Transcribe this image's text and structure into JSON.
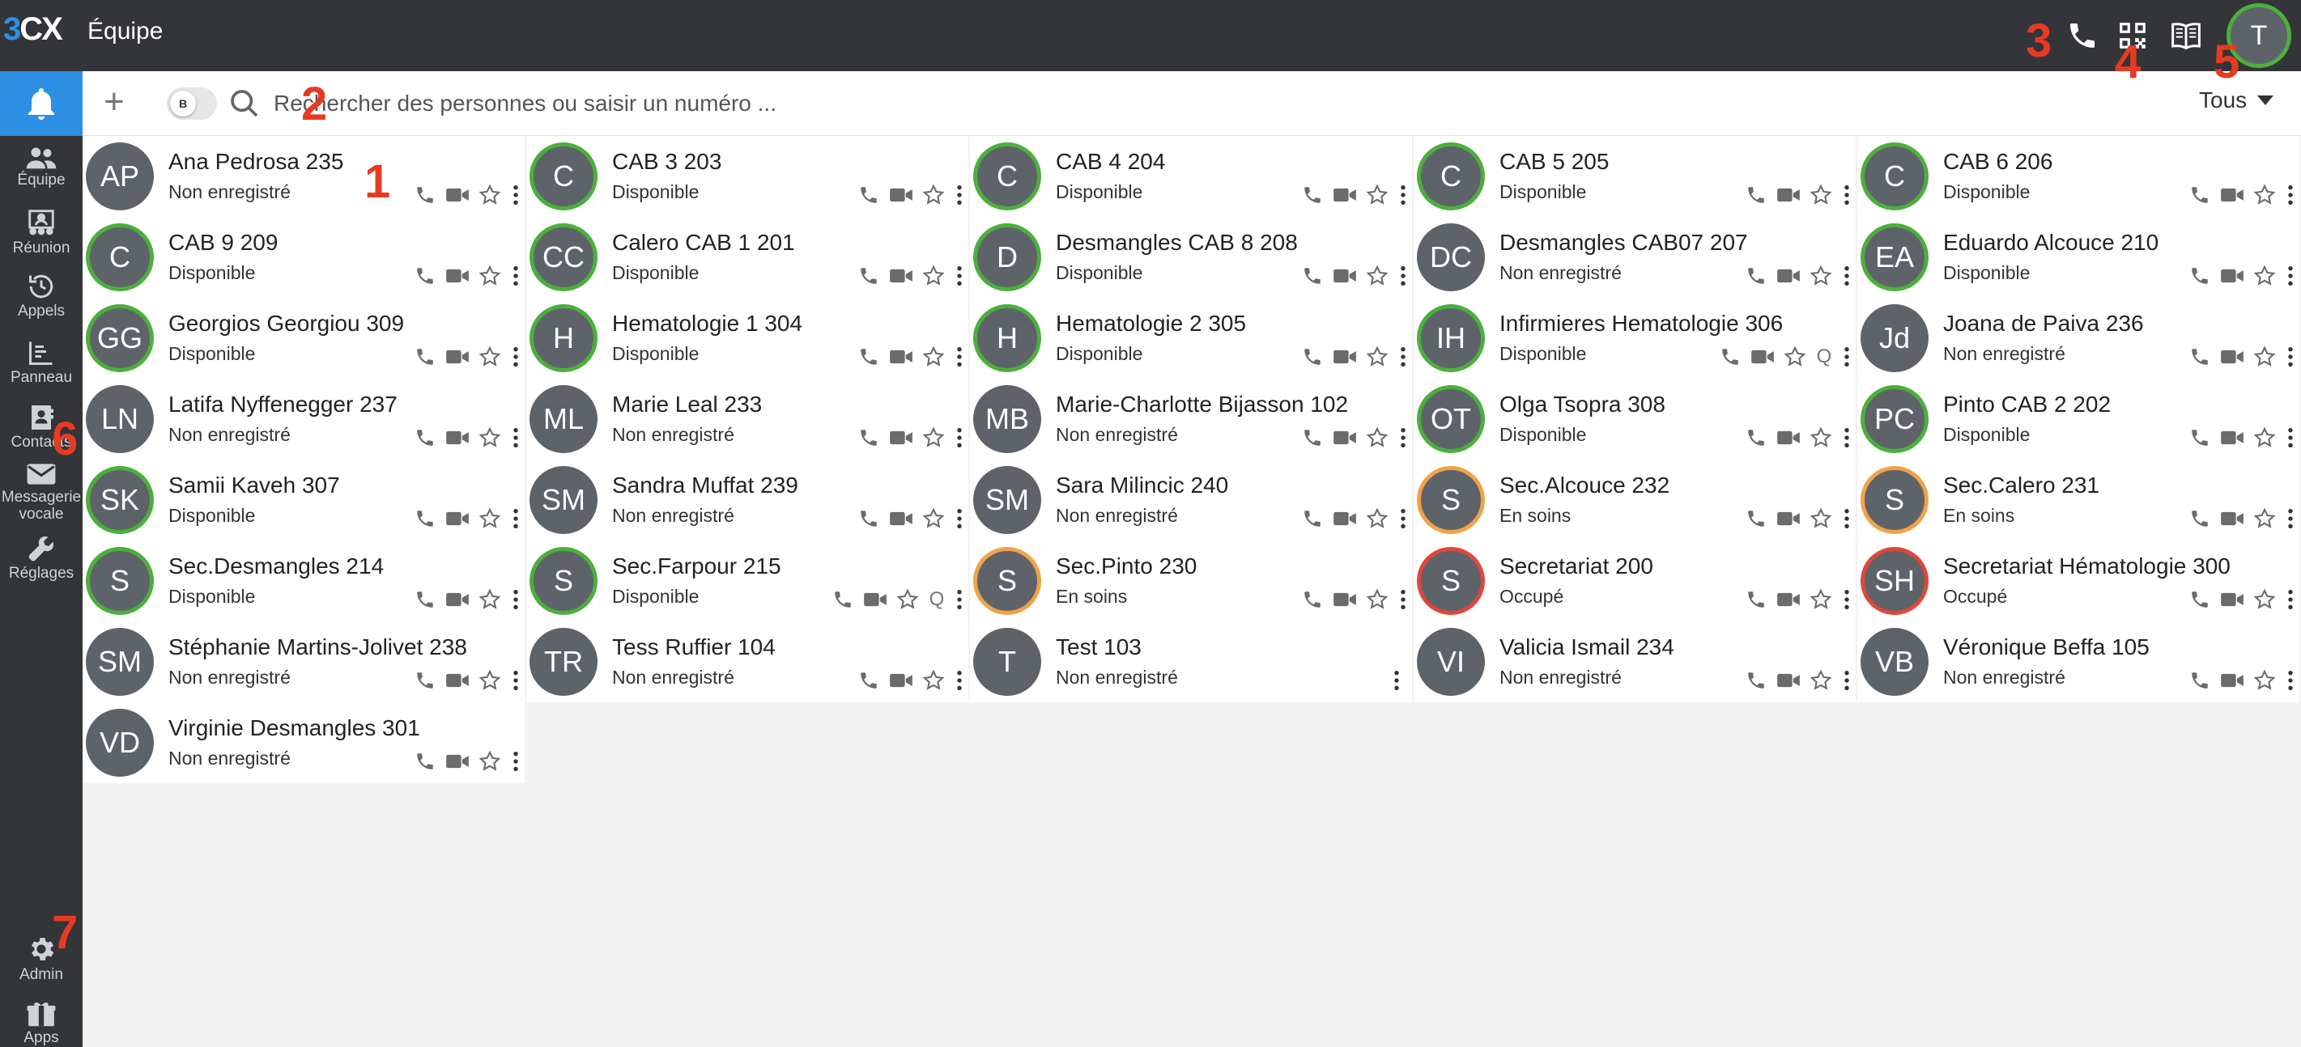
{
  "topbar": {
    "logo": "3CX",
    "title": "Équipe",
    "user_initial": "T"
  },
  "sidebar": {
    "items": [
      {
        "label": "Équipe",
        "icon": "team-icon"
      },
      {
        "label": "Réunion",
        "icon": "meeting-icon"
      },
      {
        "label": "Appels",
        "icon": "history-icon"
      },
      {
        "label": "Panneau",
        "icon": "panel-icon"
      },
      {
        "label": "Contacts",
        "icon": "contacts-icon"
      },
      {
        "label": "Messagerie vocale",
        "icon": "mail-icon"
      },
      {
        "label": "Réglages",
        "icon": "wrench-icon"
      },
      {
        "label": "Admin",
        "icon": "gear-icon"
      },
      {
        "label": "Apps",
        "icon": "apps-icon"
      }
    ]
  },
  "search": {
    "placeholder": "Rechercher des personnes ou saisir un numéro ...",
    "toggle_badge": "B",
    "filter": "Tous"
  },
  "annotations": [
    "1",
    "2",
    "3",
    "4",
    "5",
    "6",
    "7"
  ],
  "colors": {
    "accent": "#2c8fe3",
    "available": "#4caf3c",
    "busy": "#e0463b",
    "away": "#f0a347",
    "offline": "#5e636a"
  },
  "contacts": [
    {
      "initials": "AP",
      "name": "Ana Pedrosa 235",
      "status": "Non enregistré",
      "ring": "grey"
    },
    {
      "initials": "C",
      "name": "CAB 3 203",
      "status": "Disponible",
      "ring": "green"
    },
    {
      "initials": "C",
      "name": "CAB 4 204",
      "status": "Disponible",
      "ring": "green"
    },
    {
      "initials": "C",
      "name": "CAB 5 205",
      "status": "Disponible",
      "ring": "green"
    },
    {
      "initials": "C",
      "name": "CAB 6 206",
      "status": "Disponible",
      "ring": "green"
    },
    {
      "initials": "C",
      "name": "CAB 9 209",
      "status": "Disponible",
      "ring": "green"
    },
    {
      "initials": "CC",
      "name": "Calero CAB 1 201",
      "status": "Disponible",
      "ring": "green"
    },
    {
      "initials": "D",
      "name": "Desmangles CAB 8 208",
      "status": "Disponible",
      "ring": "green"
    },
    {
      "initials": "DC",
      "name": "Desmangles CAB07 207",
      "status": "Non enregistré",
      "ring": "grey"
    },
    {
      "initials": "EA",
      "name": "Eduardo Alcouce 210",
      "status": "Disponible",
      "ring": "green"
    },
    {
      "initials": "GG",
      "name": "Georgios Georgiou 309",
      "status": "Disponible",
      "ring": "green"
    },
    {
      "initials": "H",
      "name": "Hematologie 1 304",
      "status": "Disponible",
      "ring": "green"
    },
    {
      "initials": "H",
      "name": "Hematologie 2 305",
      "status": "Disponible",
      "ring": "green"
    },
    {
      "initials": "IH",
      "name": "Infirmieres Hematologie 306",
      "status": "Disponible",
      "ring": "green",
      "queue": "Q"
    },
    {
      "initials": "Jd",
      "name": "Joana de Paiva 236",
      "status": "Non enregistré",
      "ring": "grey"
    },
    {
      "initials": "LN",
      "name": "Latifa Nyffenegger 237",
      "status": "Non enregistré",
      "ring": "grey"
    },
    {
      "initials": "ML",
      "name": "Marie Leal 233",
      "status": "Non enregistré",
      "ring": "grey"
    },
    {
      "initials": "MB",
      "name": "Marie-Charlotte Bijasson 102",
      "status": "Non enregistré",
      "ring": "grey"
    },
    {
      "initials": "OT",
      "name": "Olga Tsopra 308",
      "status": "Disponible",
      "ring": "green"
    },
    {
      "initials": "PC",
      "name": "Pinto CAB 2 202",
      "status": "Disponible",
      "ring": "green"
    },
    {
      "initials": "SK",
      "name": "Samii Kaveh 307",
      "status": "Disponible",
      "ring": "green"
    },
    {
      "initials": "SM",
      "name": "Sandra Muffat 239",
      "status": "Non enregistré",
      "ring": "grey"
    },
    {
      "initials": "SM",
      "name": "Sara Milincic 240",
      "status": "Non enregistré",
      "ring": "grey"
    },
    {
      "initials": "S",
      "name": "Sec.Alcouce 232",
      "status": "En soins",
      "ring": "orange"
    },
    {
      "initials": "S",
      "name": "Sec.Calero 231",
      "status": "En soins",
      "ring": "orange"
    },
    {
      "initials": "S",
      "name": "Sec.Desmangles 214",
      "status": "Disponible",
      "ring": "green"
    },
    {
      "initials": "S",
      "name": "Sec.Farpour 215",
      "status": "Disponible",
      "ring": "green",
      "queue": "Q"
    },
    {
      "initials": "S",
      "name": "Sec.Pinto 230",
      "status": "En soins",
      "ring": "orange"
    },
    {
      "initials": "S",
      "name": "Secretariat 200",
      "status": "Occupé",
      "ring": "red"
    },
    {
      "initials": "SH",
      "name": "Secretariat Hématologie 300",
      "status": "Occupé",
      "ring": "red"
    },
    {
      "initials": "SM",
      "name": "Stéphanie Martins-Jolivet 238",
      "status": "Non enregistré",
      "ring": "grey"
    },
    {
      "initials": "TR",
      "name": "Tess Ruffier 104",
      "status": "Non enregistré",
      "ring": "grey"
    },
    {
      "initials": "T",
      "name": "Test 103",
      "status": "Non enregistré",
      "ring": "grey",
      "menu_only": true
    },
    {
      "initials": "VI",
      "name": "Valicia Ismail 234",
      "status": "Non enregistré",
      "ring": "grey"
    },
    {
      "initials": "VB",
      "name": "Véronique Beffa 105",
      "status": "Non enregistré",
      "ring": "grey"
    },
    {
      "initials": "VD",
      "name": "Virginie Desmangles 301",
      "status": "Non enregistré",
      "ring": "grey"
    }
  ]
}
